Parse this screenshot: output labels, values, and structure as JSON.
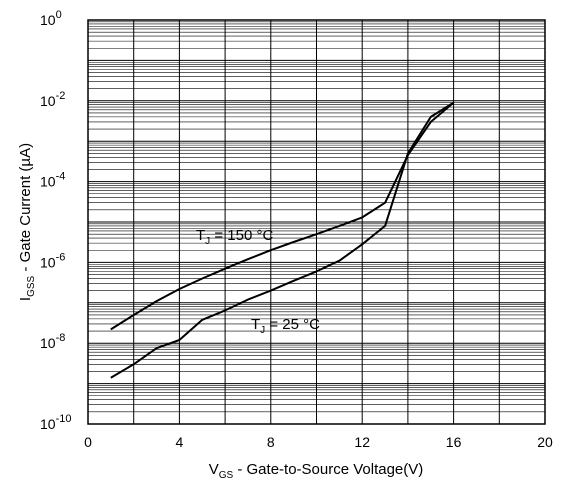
{
  "chart_data": {
    "type": "line",
    "xlabel_main": "V",
    "xlabel_sub": "GS",
    "xlabel_rest": " - Gate-to-Source Voltage(V)",
    "ylabel_main": "I",
    "ylabel_sub": "GSS",
    "ylabel_rest": " - Gate Current (µA)",
    "xlim": [
      0,
      20
    ],
    "ylim": [
      1e-10,
      1
    ],
    "yscale": "log",
    "grid": true,
    "x_ticks": [
      "0",
      "4",
      "8",
      "12",
      "16",
      "20"
    ],
    "y_ticks": [
      {
        "base": "10",
        "exp": "0"
      },
      {
        "base": "10",
        "exp": "-2"
      },
      {
        "base": "10",
        "exp": "-4"
      },
      {
        "base": "10",
        "exp": "-6"
      },
      {
        "base": "10",
        "exp": "-8"
      },
      {
        "base": "10",
        "exp": "-10"
      }
    ],
    "series": [
      {
        "label_main": "T",
        "label_sub": "J",
        "label_rest": " = 150 °C",
        "x": [
          1,
          2,
          3,
          4,
          5,
          6,
          7,
          8,
          9,
          10,
          11,
          12,
          13,
          14,
          15,
          16
        ],
        "y": [
          2.2e-08,
          5e-08,
          1.1e-07,
          2.2e-07,
          4e-07,
          7e-07,
          1.2e-06,
          2e-06,
          3.2e-06,
          5e-06,
          8e-06,
          1.3e-05,
          3e-05,
          0.00045,
          0.003,
          0.009
        ]
      },
      {
        "label_main": "T",
        "label_sub": "J",
        "label_rest": " = 25 °C",
        "x": [
          1,
          2,
          3,
          4,
          5,
          6,
          7,
          8,
          9,
          10,
          11,
          12,
          13,
          14,
          15,
          16
        ],
        "y": [
          1.4e-09,
          3e-09,
          7.5e-09,
          1.2e-08,
          3.8e-08,
          6.5e-08,
          1.2e-07,
          2e-07,
          3.5e-07,
          6e-07,
          1.1e-06,
          2.8e-06,
          8e-06,
          0.0005,
          0.004,
          0.009
        ]
      }
    ]
  }
}
